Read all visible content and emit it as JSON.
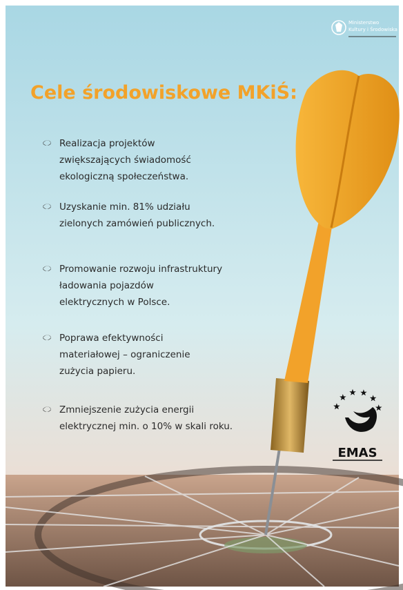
{
  "header": {
    "ministry_lines": [
      "Ministerstwo",
      "Kultury i Środowiska"
    ]
  },
  "title": "Cele środowiskowe MKiŚ:",
  "items": [
    [
      "Realizacja projektów",
      "zwiększających świadomość",
      "ekologiczną społeczeństwa."
    ],
    [
      "Uzyskanie min. 81% udziału",
      "zielonych zamówień publicznych."
    ],
    [
      "Promowanie rozwoju infrastruktury",
      "ładowania pojazdów",
      "elektrycznych w Polsce."
    ],
    [
      "Poprawa efektywności",
      "materiałowej – ograniczenie",
      "zużycia papieru."
    ],
    [
      "Zmniejszenie zużycia energii",
      "elektrycznej min. o 10% w skali roku."
    ]
  ],
  "logo": "EMAS"
}
